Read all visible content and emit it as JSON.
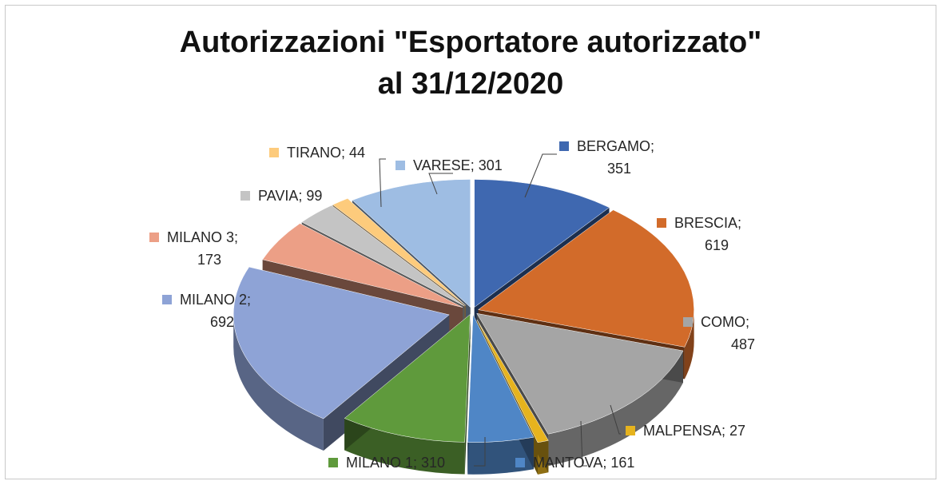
{
  "chart_data": {
    "type": "pie",
    "variant": "3d-exploded",
    "title_lines": [
      "Autorizzazioni \"Esportatore autorizzato\"",
      "al 31/12/2020"
    ],
    "slices": [
      {
        "name": "BERGAMO",
        "value": 351,
        "label_lines": [
          "BERGAMO;",
          "351"
        ],
        "color": "#3f68b0"
      },
      {
        "name": "BRESCIA",
        "value": 619,
        "label_lines": [
          "BRESCIA;",
          "619"
        ],
        "color": "#d26b2a"
      },
      {
        "name": "COMO",
        "value": 487,
        "label_lines": [
          "COMO;",
          "487"
        ],
        "color": "#a5a5a5"
      },
      {
        "name": "MALPENSA",
        "value": 27,
        "label_lines": [
          "MALPENSA; 27"
        ],
        "color": "#e6b31e"
      },
      {
        "name": "MANTOVA",
        "value": 161,
        "label_lines": [
          "MANTOVA; 161"
        ],
        "color": "#4f86c6"
      },
      {
        "name": "MILANO 1",
        "value": 310,
        "label_lines": [
          "MILANO 1; 310"
        ],
        "color": "#5f9a3c"
      },
      {
        "name": "MILANO 2",
        "value": 692,
        "label_lines": [
          "MILANO 2;",
          "692"
        ],
        "color": "#8ea3d6"
      },
      {
        "name": "MILANO 3",
        "value": 173,
        "label_lines": [
          "MILANO 3;",
          "173"
        ],
        "color": "#ec9f86"
      },
      {
        "name": "PAVIA",
        "value": 99,
        "label_lines": [
          "PAVIA; 99"
        ],
        "color": "#c4c4c4"
      },
      {
        "name": "TIRANO",
        "value": 44,
        "label_lines": [
          "TIRANO; 44"
        ],
        "color": "#fdcb7c"
      },
      {
        "name": "VARESE",
        "value": 301,
        "label_lines": [
          "VARESE; 301"
        ],
        "color": "#9ebde3"
      }
    ]
  }
}
